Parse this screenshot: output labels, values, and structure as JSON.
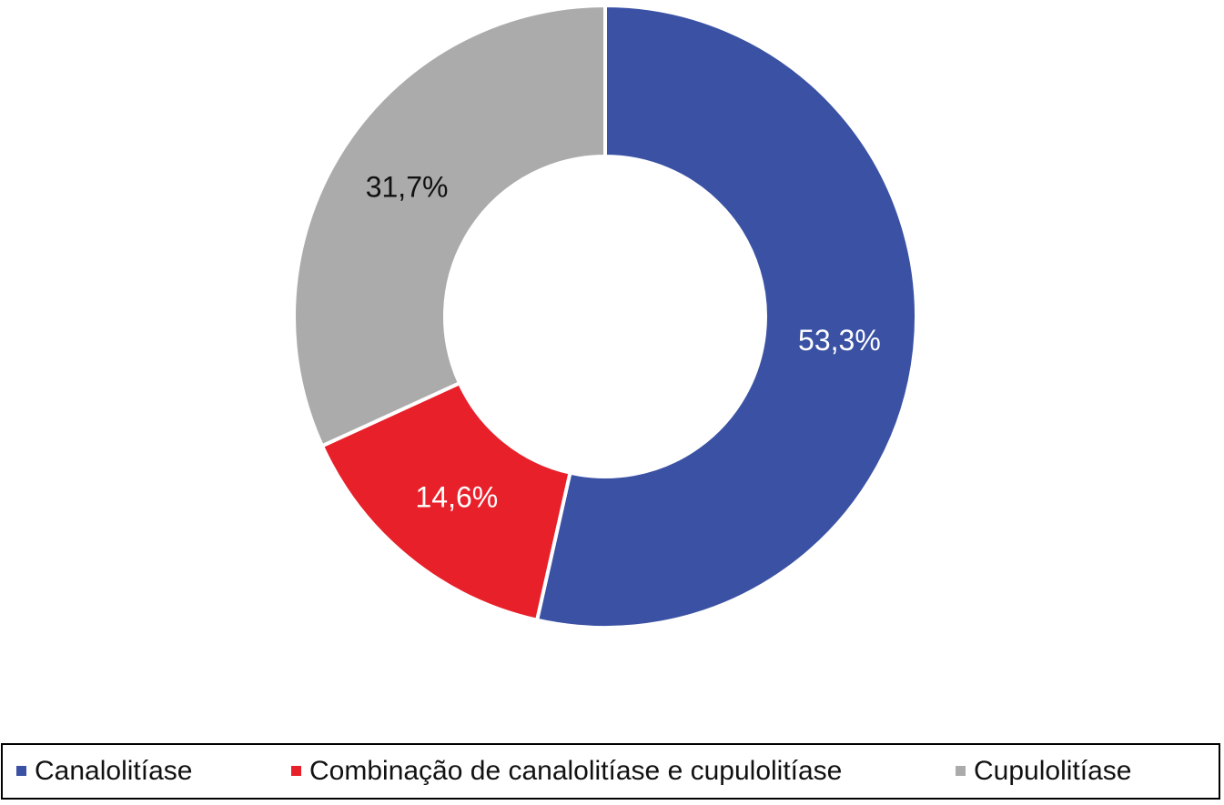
{
  "chart_data": {
    "type": "donut",
    "categories": [
      "Canalolitíase",
      "Combinação de canalolitíase e cupulolitíase",
      "Cupulolitíase"
    ],
    "values": [
      53.3,
      14.6,
      31.7
    ],
    "value_labels": [
      "53,3%",
      "14,6%",
      "31,7%"
    ],
    "colors": [
      "#3a51a4",
      "#e8202a",
      "#ababab"
    ],
    "legend": "bottom"
  }
}
